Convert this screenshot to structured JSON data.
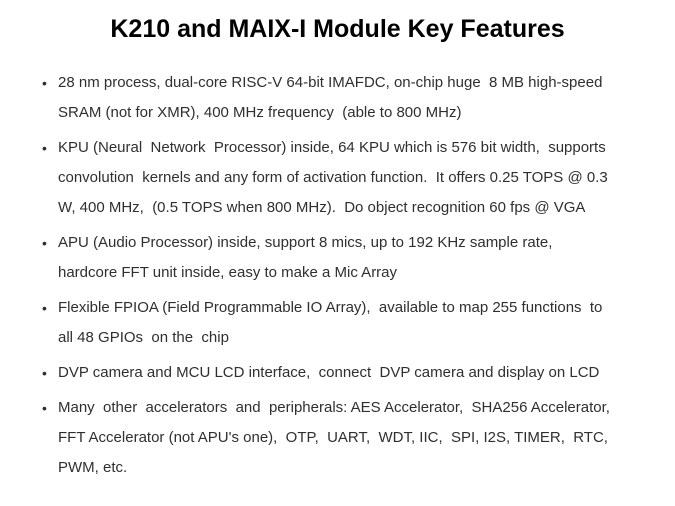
{
  "slide": {
    "title": "K210 and MAIX-I Module Key Features",
    "bullets": [
      {
        "text": "28 nm process, dual-core RISC-V 64-bit IMAFDC, on-chip huge  8 MB high-speed\nSRAM (not for XMR), 400 MHz frequency  (able to 800 MHz)"
      },
      {
        "text": "KPU (Neural  Network  Processor) inside, 64 KPU which is 576 bit width,  supports\nconvolution  kernels and any form of activation function.  It offers 0.25 TOPS @ 0.3\nW, 400 MHz,  (0.5 TOPS when 800 MHz).  Do object recognition 60 fps @ VGA"
      },
      {
        "text": "APU (Audio Processor) inside, support 8 mics, up to 192 KHz sample rate,\nhardcore FFT unit inside, easy to make a Mic Array"
      },
      {
        "text": "Flexible FPIOA (Field Programmable IO Array),  available to map 255 functions  to\nall 48 GPIOs  on the  chip"
      },
      {
        "text": "DVP camera and MCU LCD interface,  connect  DVP camera and display on LCD"
      },
      {
        "text": "Many  other  accelerators  and  peripherals: AES Accelerator,  SHA256 Accelerator,\nFFT Accelerator (not APU's one),  OTP,  UART,  WDT, IIC,  SPI, I2S, TIMER,  RTC,\nPWM, etc."
      }
    ],
    "bullet_glyph": "•",
    "colors": {
      "background": "#ffffff",
      "title_text": "#000000",
      "body_text": "#2f2f2f"
    }
  }
}
